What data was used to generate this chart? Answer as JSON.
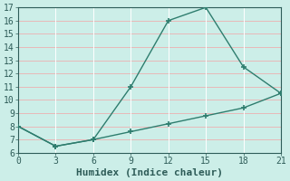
{
  "line1_x": [
    0,
    3,
    6,
    9,
    12,
    15,
    18,
    21
  ],
  "line1_y": [
    8,
    6.5,
    7,
    11,
    16,
    17,
    12.5,
    10.5
  ],
  "line2_x": [
    0,
    3,
    6,
    9,
    12,
    15,
    18,
    21
  ],
  "line2_y": [
    8,
    6.5,
    7,
    7.6,
    8.2,
    8.8,
    9.4,
    10.5
  ],
  "line_color": "#2e7d6e",
  "bg_color": "#cceee8",
  "grid_color_v": "#ffffff",
  "grid_color_h": "#e8b8b8",
  "xlabel": "Humidex (Indice chaleur)",
  "xlim": [
    0,
    21
  ],
  "ylim": [
    6,
    17
  ],
  "xticks": [
    0,
    3,
    6,
    9,
    12,
    15,
    18,
    21
  ],
  "yticks": [
    6,
    7,
    8,
    9,
    10,
    11,
    12,
    13,
    14,
    15,
    16,
    17
  ],
  "marker": "+",
  "markersize": 5,
  "markeredgewidth": 1.2,
  "linewidth": 1.0,
  "xlabel_fontsize": 8,
  "tick_fontsize": 7
}
